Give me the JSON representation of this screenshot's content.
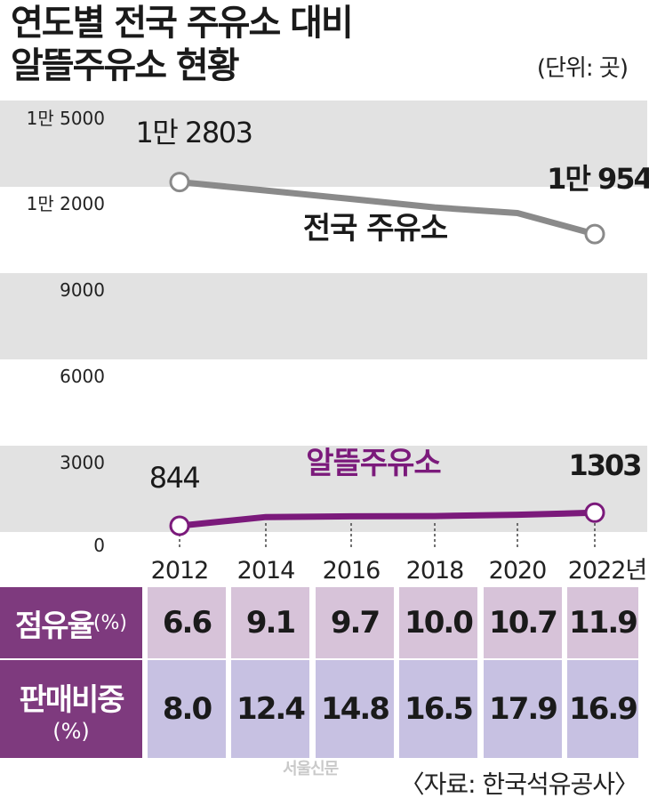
{
  "header": {
    "title_line1": "연도별 전국 주유소 대비",
    "title_line2": "알뜰주유소 현황",
    "unit": "(단위: 곳)"
  },
  "colors": {
    "national_line": "#8a8a8a",
    "budget_line": "#7b1a7b",
    "band": "#e2e2e2",
    "row1_cell": "#d7c3d9",
    "row2_cell": "#c7c1e2",
    "row_header": "#7e3a7e"
  },
  "chart_data": {
    "type": "line",
    "title": "연도별 전국 주유소 대비 알뜰주유소 현황",
    "unit": "(단위: 곳)",
    "x": [
      "2012",
      "2014",
      "2016",
      "2018",
      "2020",
      "2022"
    ],
    "x_tick_labels": [
      "2012",
      "2014",
      "2016",
      "2018",
      "2020",
      "2022년"
    ],
    "y_axis": "broken",
    "y_tick_labels": [
      "1만 5000",
      "1만 2000",
      "9000",
      "6000",
      "3000",
      "0"
    ],
    "grid": "alternating bands",
    "series": [
      {
        "name": "전국 주유소",
        "values": [
          12803,
          12500,
          12200,
          11900,
          11700,
          10954
        ],
        "labels": [
          "1만 2803",
          "",
          "",
          "",
          "",
          "1만 954"
        ]
      },
      {
        "name": "알뜰주유소",
        "values": [
          844,
          1150,
          1175,
          1185,
          1230,
          1303
        ],
        "labels": [
          "844",
          "",
          "",
          "",
          "",
          "1303"
        ]
      }
    ]
  },
  "table": {
    "rows": [
      {
        "header": "점유율",
        "header_unit": "(%)",
        "values": [
          "6.6",
          "9.1",
          "9.7",
          "10.0",
          "10.7",
          "11.9"
        ]
      },
      {
        "header": "판매비중",
        "header_unit": "(%)",
        "values": [
          "8.0",
          "12.4",
          "14.8",
          "16.5",
          "17.9",
          "16.9"
        ]
      }
    ]
  },
  "footer": {
    "logo": "서울신문",
    "source": "〈자료: 한국석유공사〉"
  }
}
